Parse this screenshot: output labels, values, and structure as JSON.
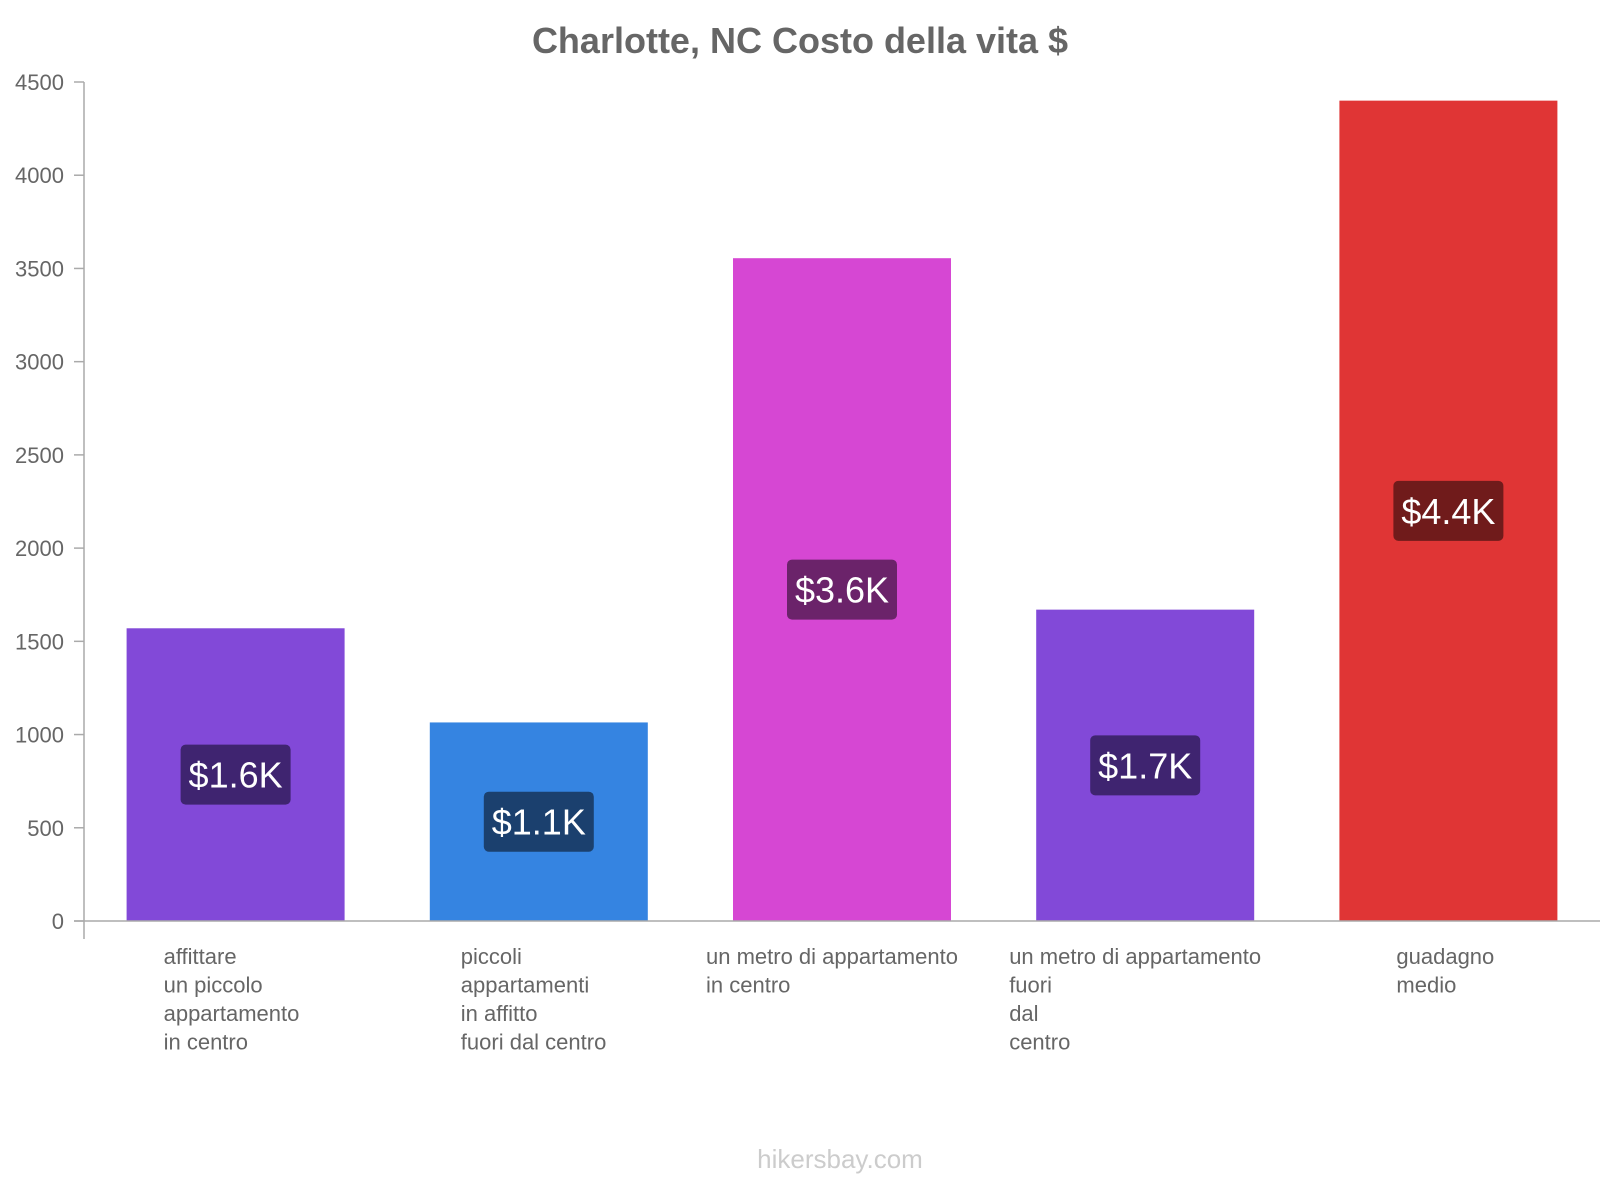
{
  "chart_data": {
    "type": "bar",
    "title": "Charlotte, NC Costo della vita $",
    "xlabel": "",
    "ylabel": "",
    "ylim": [
      0,
      4500
    ],
    "yticks": [
      0,
      500,
      1000,
      1500,
      2000,
      2500,
      3000,
      3500,
      4000,
      4500
    ],
    "grid": false,
    "categories": [
      [
        "affittare",
        "un piccolo",
        "appartamento",
        "in centro"
      ],
      [
        "piccoli",
        "appartamenti",
        "in affitto",
        "fuori dal centro"
      ],
      [
        "un metro di appartamento",
        "in centro"
      ],
      [
        "un metro di appartamento",
        "fuori",
        "dal",
        "centro"
      ],
      [
        "guadagno",
        "medio"
      ]
    ],
    "values": [
      1570,
      1065,
      3555,
      1670,
      4400
    ],
    "value_labels": [
      "$1.6K",
      "$1.1K",
      "$3.6K",
      "$1.7K",
      "$4.4K"
    ],
    "bar_colors": [
      "#8249d8",
      "#3584e1",
      "#d647d3",
      "#8249d8",
      "#e03535"
    ],
    "label_bg_colors": [
      "#3f2470",
      "#1b406e",
      "#6b236a",
      "#3f2470",
      "#701b1b"
    ]
  },
  "footer": {
    "watermark": "hikersbay.com"
  }
}
